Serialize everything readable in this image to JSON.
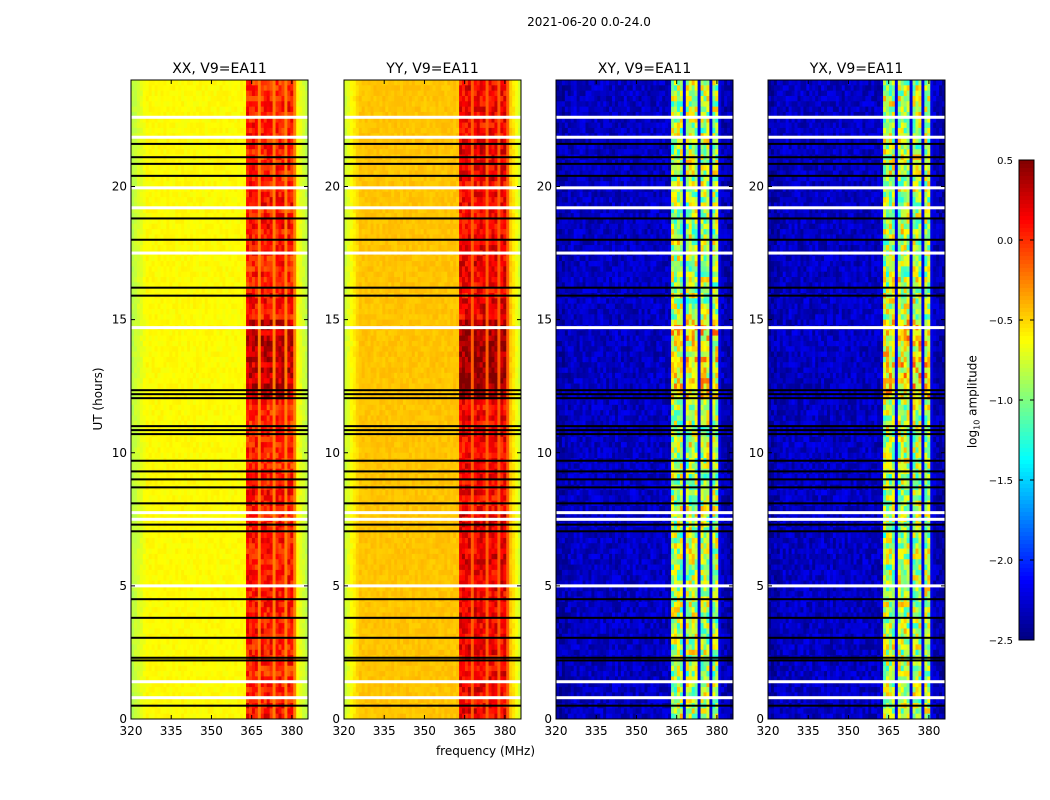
{
  "chart_data": {
    "type": "heatmap",
    "title": "2021-06-20 0.0-24.0",
    "xlabel": "frequency (MHz)",
    "ylabel": "UT (hours)",
    "xlim": [
      320,
      386
    ],
    "ylim": [
      0,
      24
    ],
    "xticks": [
      320,
      335,
      350,
      365,
      380
    ],
    "yticks": [
      0,
      5,
      10,
      15,
      20
    ],
    "colorbar": {
      "label_main": "log",
      "label_sub": "10",
      "label_rest": " amplitude",
      "colormap": "jet",
      "range": [
        -2.5,
        0.5
      ],
      "ticks": [
        0.5,
        0.0,
        -0.5,
        -1.0,
        -1.5,
        -2.0,
        -2.5
      ],
      "tick_labels": [
        "0.5",
        "0.0",
        "−0.5",
        "−1.0",
        "−1.5",
        "−2.0",
        "−2.5"
      ]
    },
    "panels": [
      {
        "title": "XX, V9=EA11",
        "base": -0.62,
        "edge": -0.85,
        "band": [
          362.5,
          381.5
        ],
        "band_level": 0.05,
        "stripe_level": -0.35
      },
      {
        "title": "YY, V9=EA11",
        "base": -0.45,
        "edge": -0.8,
        "band": [
          362.5,
          381.5
        ],
        "band_level": 0.15,
        "stripe_level": -0.25
      },
      {
        "title": "XY, V9=EA11",
        "base": -2.3,
        "edge": -2.4,
        "band": [
          362.5,
          381.5
        ],
        "band_level": -0.85,
        "stripe_level": -2.2
      },
      {
        "title": "YX, V9=EA11",
        "base": -2.3,
        "edge": -2.4,
        "band": [
          362.5,
          381.5
        ],
        "band_level": -0.85,
        "stripe_level": -2.2
      }
    ],
    "flagged_white_ut": [
      22.6,
      21.85,
      19.95,
      19.2,
      17.5,
      14.7,
      7.75,
      7.5,
      5.0,
      1.4,
      0.8
    ],
    "flagged_zero_ut": [
      21.6,
      21.1,
      20.85,
      20.4,
      18.8,
      18.0,
      16.2,
      15.9,
      12.35,
      12.2,
      12.05,
      11.0,
      10.85,
      10.7,
      9.7,
      9.3,
      9.0,
      8.7,
      8.1,
      7.3,
      7.05,
      4.5,
      3.8,
      3.05,
      2.3,
      2.2,
      0.5
    ]
  }
}
